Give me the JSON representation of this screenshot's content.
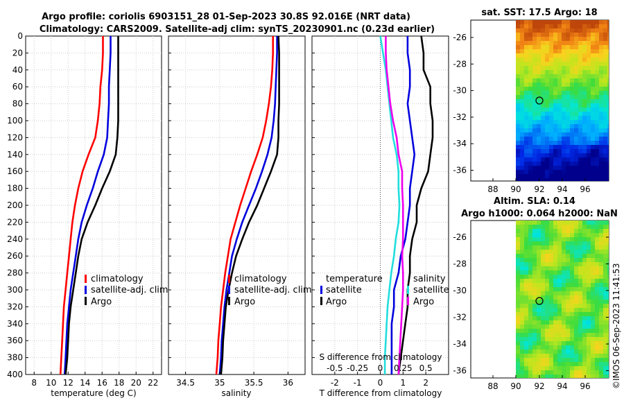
{
  "header": {
    "title_line1": "Argo profile: coriolis 6903151_28 01-Sep-2023 30.8S 92.016E (NRT data)",
    "title_line2": "Climatology: CARS2009. Satellite-adj clim: synTS_20230901.nc (0.23d earlier)"
  },
  "colors": {
    "climatology": "#ff0000",
    "satellite": "#0000dd",
    "argo": "#000000",
    "salinity_diff": "#ee00ee",
    "salinity_sat": "#22dddd"
  },
  "chart_data": [
    {
      "id": "temperature",
      "type": "line",
      "xlabel": "temperature (deg C)",
      "ylabel": "",
      "xlim": [
        7,
        23
      ],
      "ylim": [
        400,
        0
      ],
      "xticks": [
        8,
        10,
        12,
        14,
        16,
        18,
        20,
        22
      ],
      "yticks": [
        0,
        20,
        40,
        60,
        80,
        100,
        120,
        140,
        160,
        180,
        200,
        220,
        240,
        260,
        280,
        300,
        320,
        340,
        360,
        380,
        400
      ],
      "grid": true,
      "legend": {
        "position": "center-right",
        "entries": [
          "climatology",
          "satellite-adj. clim",
          "Argo"
        ]
      },
      "depth": [
        0,
        20,
        40,
        60,
        80,
        100,
        120,
        140,
        160,
        180,
        200,
        220,
        240,
        260,
        280,
        300,
        320,
        340,
        360,
        380,
        400
      ],
      "series": [
        {
          "name": "climatology",
          "values": [
            16.1,
            16.1,
            16.0,
            15.8,
            15.7,
            15.5,
            15.2,
            14.4,
            13.7,
            13.2,
            12.8,
            12.5,
            12.3,
            12.1,
            11.9,
            11.7,
            11.5,
            11.4,
            11.3,
            11.2,
            11.1
          ]
        },
        {
          "name": "satellite-adj. clim",
          "values": [
            17.0,
            17.0,
            16.9,
            16.8,
            16.8,
            16.7,
            16.6,
            16.2,
            15.5,
            14.9,
            14.2,
            13.6,
            13.2,
            12.9,
            12.6,
            12.3,
            12.1,
            11.9,
            11.8,
            11.7,
            11.6
          ]
        },
        {
          "name": "Argo",
          "values": [
            17.9,
            17.9,
            17.9,
            17.9,
            17.9,
            17.9,
            17.8,
            17.6,
            16.9,
            16.0,
            15.2,
            14.3,
            13.6,
            13.2,
            12.9,
            12.6,
            12.3,
            12.1,
            12.0,
            11.9,
            11.7
          ]
        }
      ]
    },
    {
      "id": "salinity",
      "type": "line",
      "xlabel": "salinity",
      "ylabel": "",
      "xlim": [
        34.25,
        36.25
      ],
      "ylim": [
        400,
        0
      ],
      "xticks": [
        34.5,
        35,
        35.5,
        36
      ],
      "xticklabels": [
        "34.5",
        "35",
        "35.5",
        "36"
      ],
      "grid": true,
      "legend": {
        "position": "center-right",
        "entries": [
          "climatology",
          "satellite-adj. clim",
          "Argo"
        ]
      },
      "depth": [
        0,
        20,
        40,
        60,
        80,
        100,
        120,
        140,
        160,
        180,
        200,
        220,
        240,
        260,
        280,
        300,
        320,
        340,
        360,
        380,
        400
      ],
      "series": [
        {
          "name": "climatology",
          "values": [
            35.78,
            35.78,
            35.77,
            35.75,
            35.72,
            35.68,
            35.63,
            35.55,
            35.46,
            35.38,
            35.3,
            35.23,
            35.16,
            35.12,
            35.08,
            35.05,
            35.02,
            35.0,
            34.98,
            34.97,
            34.95
          ]
        },
        {
          "name": "satellite-adj. clim",
          "values": [
            35.84,
            35.84,
            35.83,
            35.82,
            35.81,
            35.79,
            35.76,
            35.7,
            35.62,
            35.53,
            35.43,
            35.33,
            35.25,
            35.18,
            35.14,
            35.1,
            35.07,
            35.05,
            35.03,
            35.02,
            35.0
          ]
        },
        {
          "name": "Argo",
          "values": [
            35.86,
            35.87,
            35.87,
            35.87,
            35.87,
            35.86,
            35.86,
            35.84,
            35.75,
            35.65,
            35.55,
            35.43,
            35.33,
            35.24,
            35.18,
            35.13,
            35.09,
            35.07,
            35.05,
            35.04,
            35.02
          ]
        }
      ]
    },
    {
      "id": "differences",
      "type": "line",
      "xlabel": "T difference from climatology",
      "top_xlabel": "S difference from climatology",
      "xlim": [
        -3,
        3
      ],
      "ylim": [
        400,
        0
      ],
      "xticks": [
        -2,
        -1,
        0,
        1,
        2
      ],
      "top_xticklabels": [
        "-0.5",
        "-0.25",
        "0",
        "0.25",
        "0.5"
      ],
      "grid": true,
      "legend_left": {
        "title": "temperature",
        "entries": [
          "satellite",
          "Argo"
        ]
      },
      "legend_right": {
        "title": "salinity",
        "entries": [
          "satellite",
          "Argo"
        ]
      },
      "depth": [
        0,
        20,
        40,
        60,
        80,
        100,
        120,
        140,
        160,
        180,
        200,
        220,
        240,
        260,
        280,
        300,
        320,
        340,
        360,
        380,
        400
      ],
      "series": [
        {
          "name": "temperature satellite",
          "values": [
            1.2,
            1.2,
            1.3,
            1.3,
            1.2,
            1.3,
            1.4,
            1.5,
            1.4,
            1.3,
            1.3,
            1.2,
            1.1,
            0.9,
            0.8,
            0.6,
            0.6,
            0.5,
            0.5,
            0.5,
            0.5
          ]
        },
        {
          "name": "temperature Argo",
          "values": [
            1.8,
            1.9,
            1.9,
            2.2,
            2.2,
            2.3,
            2.3,
            2.2,
            2.1,
            1.8,
            1.6,
            1.6,
            1.4,
            1.3,
            1.3,
            1.2,
            1.2,
            1.1,
            1.0,
            0.9,
            0.8
          ]
        },
        {
          "name": "salinity satellite",
          "values": [
            0.0,
            0.03,
            0.06,
            0.08,
            0.1,
            0.12,
            0.14,
            0.18,
            0.2,
            0.2,
            0.21,
            0.2,
            0.17,
            0.15,
            0.12,
            0.1,
            0.08,
            0.07,
            0.06,
            0.05,
            0.05
          ]
        },
        {
          "name": "salinity Argo",
          "values": [
            0.06,
            0.06,
            0.07,
            0.09,
            0.11,
            0.14,
            0.18,
            0.2,
            0.24,
            0.24,
            0.25,
            0.25,
            0.25,
            0.24,
            0.25,
            0.25,
            0.24,
            0.23,
            0.22,
            0.21,
            0.2
          ]
        }
      ]
    }
  ],
  "map_sst": {
    "title": "sat. SST: 17.5 Argo: 18",
    "xticks": [
      "88",
      "90",
      "92",
      "94",
      "96"
    ],
    "yticks": [
      "-26",
      "-28",
      "-30",
      "-32",
      "-34",
      "-36"
    ]
  },
  "map_sla": {
    "title_line1": "Altim. SLA: 0.14",
    "title_line2": "Argo h1000: 0.064 h2000: NaN",
    "xticks": [
      "88",
      "90",
      "92",
      "94",
      "96"
    ],
    "yticks": [
      "-26",
      "-28",
      "-30",
      "-32",
      "-34",
      "-36"
    ]
  },
  "stamp": "©IMOS 06-Sep-2023 11:41:53"
}
